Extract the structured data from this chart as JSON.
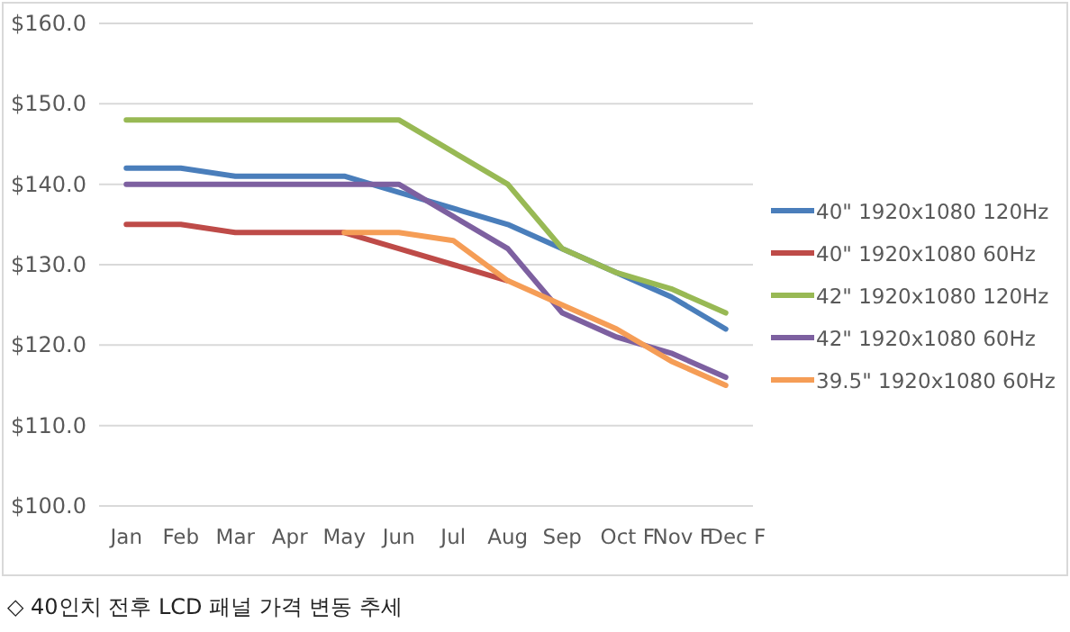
{
  "chart_data": {
    "type": "line",
    "categories": [
      "Jan",
      "Feb",
      "Mar",
      "Apr",
      "May",
      "Jun",
      "Jul",
      "Aug",
      "Sep",
      "Oct F",
      "Nov F",
      "Dec F"
    ],
    "series": [
      {
        "name": "40\" 1920x1080 120Hz",
        "color": "#4a7ebb",
        "values": [
          142,
          142,
          141,
          141,
          141,
          139,
          137,
          135,
          132,
          129,
          126,
          122
        ]
      },
      {
        "name": "40\" 1920x1080 60Hz",
        "color": "#be4b48",
        "values": [
          135,
          135,
          134,
          134,
          134,
          132,
          130,
          128,
          null,
          null,
          null,
          null
        ]
      },
      {
        "name": "42\" 1920x1080 120Hz",
        "color": "#98b954",
        "values": [
          148,
          148,
          148,
          148,
          148,
          148,
          144,
          140,
          132,
          129,
          127,
          124
        ]
      },
      {
        "name": "42\" 1920x1080 60Hz",
        "color": "#7d60a0",
        "values": [
          140,
          140,
          140,
          140,
          140,
          140,
          136,
          132,
          124,
          121,
          119,
          116
        ]
      },
      {
        "name": "39.5\" 1920x1080 60Hz",
        "color": "#f59d56",
        "values": [
          null,
          null,
          null,
          null,
          134,
          134,
          133,
          128,
          125,
          122,
          118,
          115
        ]
      }
    ],
    "ylim": [
      100,
      160
    ],
    "yticks": [
      {
        "value": 100,
        "label": "$100.0"
      },
      {
        "value": 110,
        "label": "$110.0"
      },
      {
        "value": 120,
        "label": "$120.0"
      },
      {
        "value": 130,
        "label": "$130.0"
      },
      {
        "value": 140,
        "label": "$140.0"
      },
      {
        "value": 150,
        "label": "$150.0"
      },
      {
        "value": 160,
        "label": "$160.0"
      }
    ],
    "grid": "y",
    "legend": "right",
    "marker": "none",
    "line_style": "solid",
    "annotations": [
      "◇ 40인치 전후 LCD 패널 가격 변동 추세"
    ]
  }
}
